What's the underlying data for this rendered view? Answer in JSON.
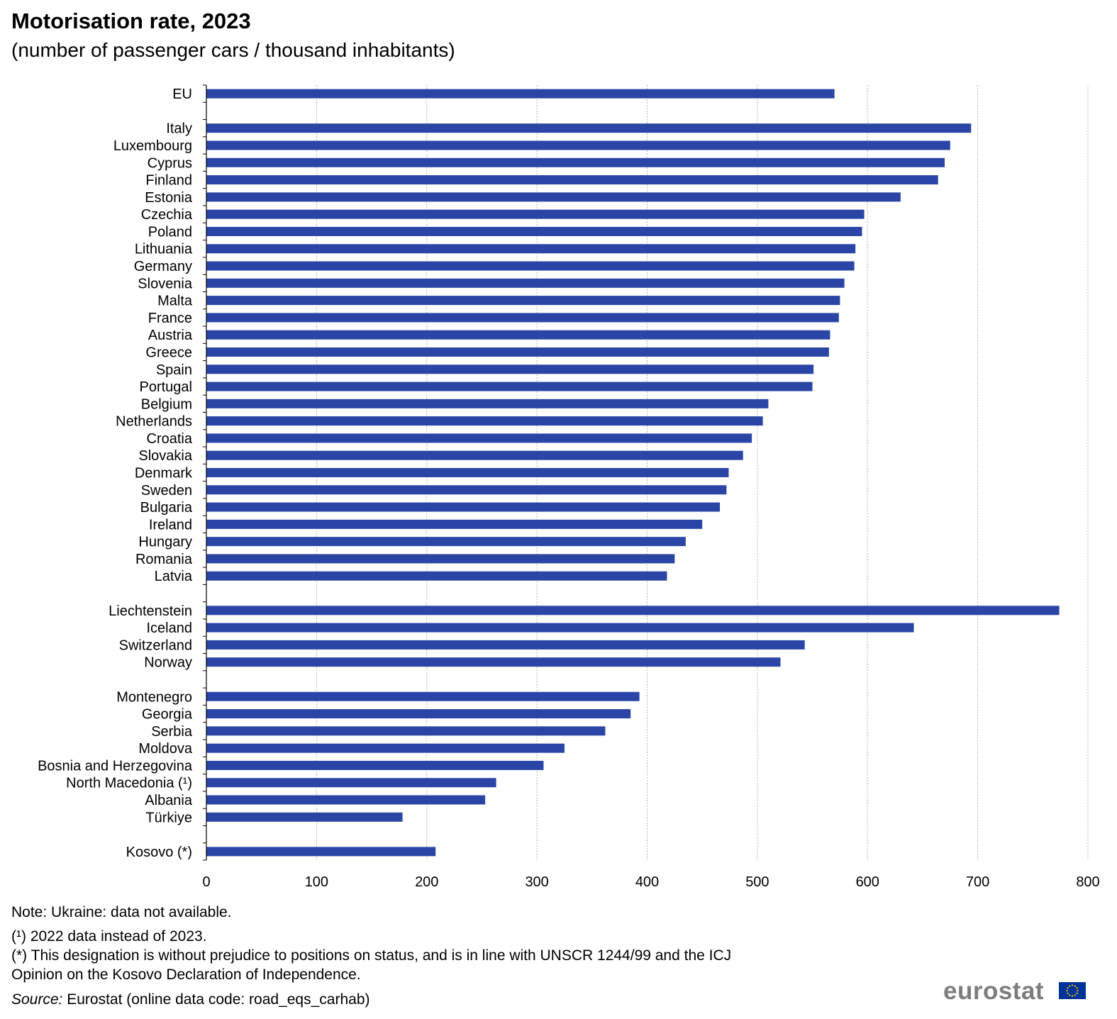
{
  "title": "Motorisation rate, 2023",
  "subtitle": "(number of passenger cars / thousand inhabitants)",
  "chart_data": {
    "type": "bar",
    "orientation": "horizontal",
    "categories": [
      "EU",
      "",
      "Italy",
      "Luxembourg",
      "Cyprus",
      "Finland",
      "Estonia",
      "Czechia",
      "Poland",
      "Lithuania",
      "Germany",
      "Slovenia",
      "Malta",
      "France",
      "Austria",
      "Greece",
      "Spain",
      "Portugal",
      "Belgium",
      "Netherlands",
      "Croatia",
      "Slovakia",
      "Denmark",
      "Sweden",
      "Bulgaria",
      "Ireland",
      "Hungary",
      "Romania",
      "Latvia",
      "",
      "Liechtenstein",
      "Iceland",
      "Switzerland",
      "Norway",
      "",
      "Montenegro",
      "Georgia",
      "Serbia",
      "Moldova",
      "Bosnia and Herzegovina",
      "North Macedonia (¹)",
      "Albania",
      "Türkiye",
      "",
      "Kosovo (*)"
    ],
    "values": [
      570,
      null,
      694,
      675,
      670,
      664,
      630,
      597,
      595,
      589,
      588,
      579,
      575,
      574,
      566,
      565,
      551,
      550,
      510,
      505,
      495,
      487,
      474,
      472,
      466,
      450,
      435,
      425,
      418,
      null,
      774,
      642,
      543,
      521,
      null,
      393,
      385,
      362,
      325,
      306,
      263,
      253,
      178,
      null,
      208
    ],
    "xlim": [
      0,
      800
    ],
    "xticks": [
      0,
      100,
      200,
      300,
      400,
      500,
      600,
      700,
      800
    ],
    "grid": "vertical dashed",
    "bar_color": "#2a45a6"
  },
  "notes": {
    "note1": "Note: Ukraine: data not available.",
    "note2": "(¹) 2022 data instead of 2023.",
    "note3": "(*) This designation is without prejudice to positions on status, and is in line with UNSCR 1244/99 and the ICJ",
    "note4": "Opinion on the Kosovo Declaration of Independence.",
    "source_label": "Source:",
    "source_text": " Eurostat (online data code: road_eqs_carhab)"
  },
  "logo": {
    "text": "eurostat",
    "flag_color": "#003399",
    "star_color": "#ffcc00"
  }
}
